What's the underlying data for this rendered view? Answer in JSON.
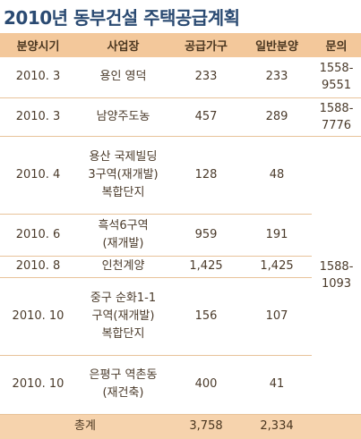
{
  "title": "2010년 동부건설 주택공급계획",
  "headers": [
    "분양시기",
    "사업장",
    "공급가구",
    "일반분양",
    "문의"
  ],
  "rows": [
    {
      "period": "2010. 3",
      "site": "용인 영덕",
      "supply": "233",
      "general": "233",
      "contact": "1558-\n9551"
    },
    {
      "period": "2010. 3",
      "site": "남양주도농",
      "supply": "457",
      "general": "289",
      "contact": "1588-\n7776"
    },
    {
      "period": "2010. 4",
      "site": "용산 국제빌딩\n3구역(재개발)\n복합단지",
      "supply": "128",
      "general": "48"
    },
    {
      "period": "2010. 6",
      "site": "흑석6구역\n(재개발)",
      "supply": "959",
      "general": "191"
    },
    {
      "period": "2010. 8",
      "site": "인천계양",
      "supply": "1,425",
      "general": "1,425"
    },
    {
      "period": "2010. 10",
      "site": "중구 순화1-1\n구역(재개발)\n복합단지",
      "supply": "156",
      "general": "107"
    },
    {
      "period": "2010. 10",
      "site": "은평구 역촌동\n(재건축)",
      "supply": "400",
      "general": "41"
    }
  ],
  "shared_contact": "1588-\n1093",
  "total": {
    "label": "총계",
    "supply": "3,758",
    "general": "2,334"
  },
  "colors": {
    "title": "#2a4a72",
    "header_bg": "#f3c89b",
    "total_bg": "#f6d3ad",
    "row_line": "#e8c39a"
  }
}
